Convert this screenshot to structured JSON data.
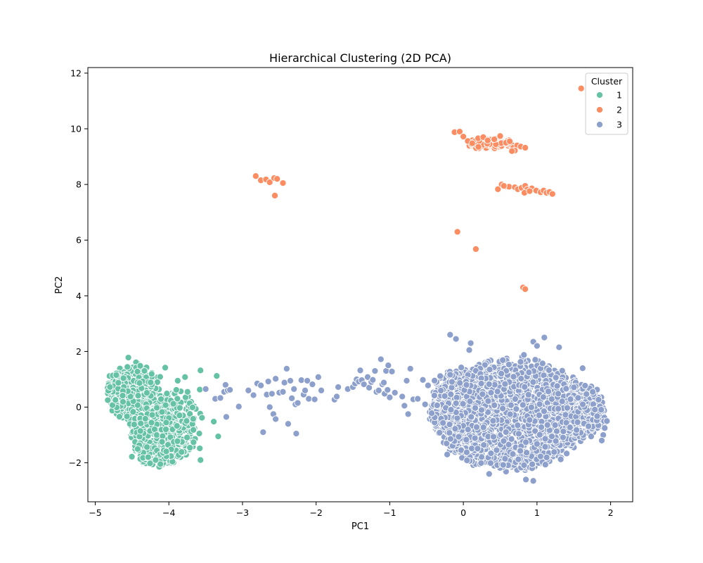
{
  "chart_data": {
    "type": "scatter",
    "title": "Hierarchical Clustering (2D PCA)",
    "xlabel": "PC1",
    "ylabel": "PC2",
    "xlim": [
      -5.1,
      2.3
    ],
    "ylim": [
      -3.4,
      12.2
    ],
    "x_ticks": [
      -5,
      -4,
      -3,
      -2,
      -1,
      0,
      1,
      2
    ],
    "y_ticks": [
      -2,
      0,
      2,
      4,
      6,
      8,
      10,
      12
    ],
    "grid": false,
    "legend": {
      "title": "Cluster",
      "placement": "top-right"
    },
    "series": [
      {
        "name": "1",
        "color": "#66c2a5",
        "regions": [
          {
            "cx": -4.45,
            "cy": 0.45,
            "rx": 0.32,
            "ry": 1.05,
            "n": 380
          },
          {
            "cx": -4.15,
            "cy": -1.05,
            "rx": 0.35,
            "ry": 1.05,
            "n": 430
          },
          {
            "cx": -3.9,
            "cy": -0.6,
            "rx": 0.3,
            "ry": 1.25,
            "n": 200
          },
          {
            "cx": -4.7,
            "cy": 0.6,
            "rx": 0.12,
            "ry": 0.7,
            "n": 60
          }
        ],
        "points": [
          [
            -4.55,
            1.78
          ],
          [
            -3.57,
            1.32
          ],
          [
            -3.35,
            1.12
          ],
          [
            -3.58,
            0.63
          ],
          [
            -3.55,
            -0.38
          ],
          [
            -3.39,
            -0.52
          ],
          [
            -3.33,
            -1.05
          ],
          [
            -3.57,
            -1.9
          ],
          [
            -3.58,
            -1.48
          ],
          [
            -4.05,
            1.42
          ],
          [
            -4.8,
            0.72
          ],
          [
            -4.83,
            0.25
          ],
          [
            -3.78,
            1.08
          ],
          [
            -3.88,
            0.95
          ]
        ]
      },
      {
        "name": "2",
        "color": "#fc8d62",
        "regions": [
          {
            "cx": 0.35,
            "cy": 9.45,
            "rx": 0.28,
            "ry": 0.12,
            "n": 90
          }
        ],
        "points": [
          [
            -0.12,
            9.88
          ],
          [
            -0.05,
            9.9
          ],
          [
            0.0,
            9.72
          ],
          [
            0.06,
            9.56
          ],
          [
            0.12,
            9.48
          ],
          [
            0.2,
            9.66
          ],
          [
            0.27,
            9.7
          ],
          [
            0.33,
            9.58
          ],
          [
            0.42,
            9.62
          ],
          [
            0.5,
            9.74
          ],
          [
            0.58,
            9.5
          ],
          [
            0.63,
            9.55
          ],
          [
            0.68,
            9.32
          ],
          [
            0.73,
            9.4
          ],
          [
            0.78,
            9.36
          ],
          [
            0.84,
            9.32
          ],
          [
            0.7,
            9.22
          ],
          [
            0.66,
            9.2
          ],
          [
            -2.82,
            8.3
          ],
          [
            -2.75,
            8.15
          ],
          [
            -2.68,
            8.18
          ],
          [
            -2.63,
            8.08
          ],
          [
            -2.57,
            8.23
          ],
          [
            -2.53,
            8.2
          ],
          [
            -2.45,
            8.05
          ],
          [
            -2.56,
            7.6
          ],
          [
            0.47,
            7.83
          ],
          [
            0.52,
            8.0
          ],
          [
            0.57,
            7.93
          ],
          [
            0.62,
            7.92
          ],
          [
            0.7,
            7.9
          ],
          [
            0.74,
            7.83
          ],
          [
            0.79,
            7.88
          ],
          [
            0.84,
            7.95
          ],
          [
            0.87,
            7.82
          ],
          [
            0.93,
            7.86
          ],
          [
            0.99,
            7.78
          ],
          [
            1.05,
            7.72
          ],
          [
            1.09,
            7.78
          ],
          [
            1.13,
            7.7
          ],
          [
            1.17,
            7.73
          ],
          [
            1.21,
            7.66
          ],
          [
            0.83,
            7.7
          ],
          [
            0.55,
            7.95
          ],
          [
            0.9,
            7.76
          ],
          [
            -0.08,
            6.3
          ],
          [
            0.17,
            5.68
          ],
          [
            0.81,
            4.3
          ],
          [
            0.84,
            4.24
          ],
          [
            1.6,
            11.45
          ]
        ]
      },
      {
        "name": "3",
        "color": "#8da0cb",
        "regions": [
          {
            "cx": 0.65,
            "cy": -0.25,
            "rx": 1.05,
            "ry": 2.0,
            "n": 1500
          },
          {
            "cx": 1.35,
            "cy": -0.15,
            "rx": 0.55,
            "ry": 1.15,
            "n": 450
          },
          {
            "cx": 0.05,
            "cy": -0.1,
            "rx": 0.45,
            "ry": 1.55,
            "n": 420
          },
          {
            "cx": -0.2,
            "cy": 0.3,
            "rx": 0.25,
            "ry": 1.0,
            "n": 90
          },
          {
            "cx": 1.75,
            "cy": -0.3,
            "rx": 0.18,
            "ry": 0.5,
            "n": 80
          }
        ],
        "points": [
          [
            -3.5,
            0.65
          ],
          [
            -3.37,
            0.3
          ],
          [
            -3.3,
            0.33
          ],
          [
            -3.25,
            0.55
          ],
          [
            -3.23,
            0.8
          ],
          [
            -3.2,
            0.6
          ],
          [
            -3.22,
            -0.35
          ],
          [
            -3.17,
            0.62
          ],
          [
            -3.05,
            0.02
          ],
          [
            -2.92,
            0.6
          ],
          [
            -2.85,
            0.43
          ],
          [
            -2.8,
            0.85
          ],
          [
            -2.75,
            0.78
          ],
          [
            -2.72,
            -0.9
          ],
          [
            -2.67,
            0.45
          ],
          [
            -2.65,
            0.92
          ],
          [
            -2.63,
            0.0
          ],
          [
            -2.6,
            0.48
          ],
          [
            -2.58,
            -0.25
          ],
          [
            -2.55,
            1.02
          ],
          [
            -2.55,
            -0.43
          ],
          [
            -2.5,
            0.52
          ],
          [
            -2.45,
            0.55
          ],
          [
            -2.43,
            0.88
          ],
          [
            -2.4,
            1.38
          ],
          [
            -2.38,
            -0.6
          ],
          [
            -2.35,
            0.95
          ],
          [
            -2.33,
            0.32
          ],
          [
            -2.3,
            0.65
          ],
          [
            -2.28,
            0.1
          ],
          [
            -2.27,
            -0.95
          ],
          [
            -2.25,
            0.15
          ],
          [
            -2.2,
            0.97
          ],
          [
            -2.17,
            0.45
          ],
          [
            -2.15,
            0.6
          ],
          [
            -2.12,
            0.95
          ],
          [
            -2.1,
            0.3
          ],
          [
            -2.05,
            0.82
          ],
          [
            -2.02,
            0.28
          ],
          [
            -1.97,
            1.08
          ],
          [
            -1.93,
            0.6
          ],
          [
            -1.75,
            0.27
          ],
          [
            -1.72,
            0.38
          ],
          [
            -1.7,
            0.72
          ],
          [
            -1.57,
            0.65
          ],
          [
            -1.5,
            0.72
          ],
          [
            -1.47,
            0.85
          ],
          [
            -1.45,
            1.0
          ],
          [
            -1.42,
            0.92
          ],
          [
            -1.4,
            1.32
          ],
          [
            -1.38,
            0.97
          ],
          [
            -1.35,
            0.82
          ],
          [
            -1.3,
            1.08
          ],
          [
            -1.28,
            0.7
          ],
          [
            -1.25,
            0.9
          ],
          [
            -1.23,
            0.98
          ],
          [
            -1.2,
            1.3
          ],
          [
            -1.18,
            0.55
          ],
          [
            -1.15,
            0.6
          ],
          [
            -1.12,
            1.72
          ],
          [
            -1.1,
            0.82
          ],
          [
            -1.08,
            0.88
          ],
          [
            -1.07,
            0.48
          ],
          [
            -1.05,
            1.3
          ],
          [
            -1.03,
            0.62
          ],
          [
            -1.02,
            1.5
          ],
          [
            -1.0,
            0.35
          ],
          [
            -0.97,
            1.28
          ],
          [
            -0.93,
            0.52
          ],
          [
            -0.83,
            0.38
          ],
          [
            -0.8,
            0.05
          ],
          [
            -0.77,
            0.95
          ],
          [
            -0.75,
            -0.25
          ],
          [
            -0.72,
            1.38
          ],
          [
            -0.68,
            0.28
          ],
          [
            -0.62,
            0.3
          ],
          [
            -0.55,
            0.98
          ],
          [
            -0.52,
            0.1
          ],
          [
            -0.48,
            0.78
          ],
          [
            -0.43,
            -0.22
          ],
          [
            -0.18,
            2.6
          ],
          [
            -0.1,
            2.45
          ],
          [
            0.08,
            2.05
          ],
          [
            0.1,
            2.3
          ],
          [
            0.95,
            2.35
          ],
          [
            1.0,
            2.2
          ],
          [
            1.1,
            2.5
          ],
          [
            1.3,
            2.15
          ],
          [
            1.62,
            1.4
          ],
          [
            1.9,
            -1.0
          ],
          [
            1.95,
            -0.5
          ],
          [
            0.85,
            -2.6
          ],
          [
            0.95,
            -2.65
          ],
          [
            0.35,
            -2.4
          ],
          [
            -0.22,
            -1.7
          ],
          [
            1.92,
            -0.75
          ],
          [
            1.88,
            -1.2
          ]
        ]
      }
    ]
  }
}
